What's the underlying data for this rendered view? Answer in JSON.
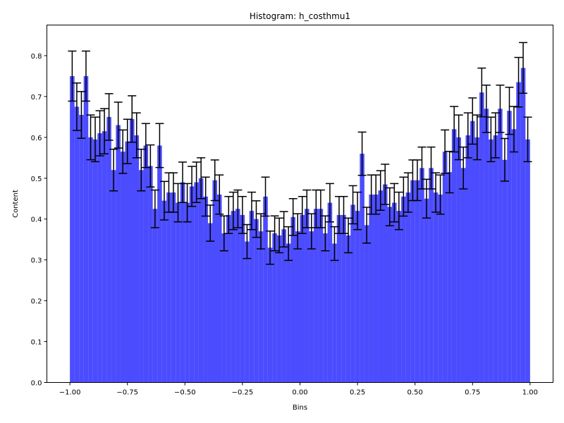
{
  "chart_data": {
    "type": "bar",
    "title": "Histogram: h_costhmu1",
    "xlabel": "Bins",
    "ylabel": "Content",
    "xlim": [
      -1.1,
      1.1
    ],
    "ylim": [
      0,
      0.875
    ],
    "x_ticks": [
      "−1.00",
      "−0.75",
      "−0.50",
      "−0.25",
      "0.00",
      "0.25",
      "0.50",
      "0.75",
      "1.00"
    ],
    "x_tick_values": [
      -1.0,
      -0.75,
      -0.5,
      -0.25,
      0.0,
      0.25,
      0.5,
      0.75,
      1.0
    ],
    "y_ticks": [
      "0.0",
      "0.1",
      "0.2",
      "0.3",
      "0.4",
      "0.5",
      "0.6",
      "0.7",
      "0.8"
    ],
    "y_tick_values": [
      0.0,
      0.1,
      0.2,
      0.3,
      0.4,
      0.5,
      0.6,
      0.7,
      0.8
    ],
    "bin_range": [
      -1.0,
      1.0
    ],
    "bar_color": "#0000ff",
    "bar_alpha": 0.7,
    "errorbar_color": "#000000",
    "grid": false,
    "legend": "none",
    "values": [
      0.75,
      0.675,
      0.655,
      0.75,
      0.6,
      0.595,
      0.61,
      0.615,
      0.65,
      0.52,
      0.63,
      0.565,
      0.59,
      0.645,
      0.605,
      0.52,
      0.58,
      0.53,
      0.425,
      0.58,
      0.445,
      0.465,
      0.465,
      0.44,
      0.49,
      0.44,
      0.48,
      0.49,
      0.5,
      0.455,
      0.39,
      0.495,
      0.46,
      0.365,
      0.41,
      0.42,
      0.425,
      0.41,
      0.345,
      0.42,
      0.4,
      0.37,
      0.455,
      0.33,
      0.365,
      0.36,
      0.375,
      0.34,
      0.405,
      0.37,
      0.41,
      0.425,
      0.37,
      0.425,
      0.425,
      0.365,
      0.44,
      0.34,
      0.41,
      0.41,
      0.36,
      0.435,
      0.42,
      0.56,
      0.385,
      0.46,
      0.46,
      0.47,
      0.485,
      0.43,
      0.44,
      0.42,
      0.455,
      0.465,
      0.495,
      0.495,
      0.525,
      0.45,
      0.525,
      0.465,
      0.46,
      0.565,
      0.515,
      0.62,
      0.6,
      0.525,
      0.605,
      0.64,
      0.6,
      0.71,
      0.67,
      0.595,
      0.605,
      0.67,
      0.545,
      0.665,
      0.62,
      0.735,
      0.77,
      0.595
    ]
  }
}
